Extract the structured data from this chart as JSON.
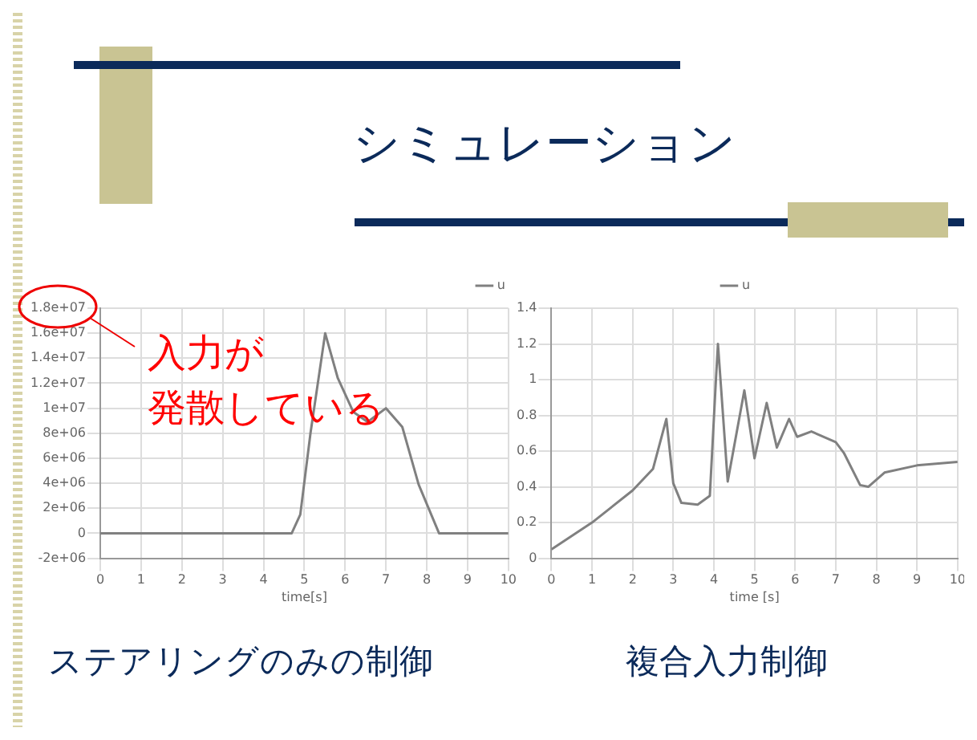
{
  "chart_data": [
    {
      "type": "line",
      "annotations": [
        "シミュレーション",
        "入力が",
        "発散している",
        "ステアリングのみの制御"
      ],
      "xlabel": "time[s]",
      "x": [
        0,
        1,
        2,
        3,
        4,
        4.69,
        4.9,
        5.15,
        5.51,
        5.82,
        6.2,
        6.55,
        7.0,
        7.4,
        7.8,
        8.3,
        9,
        10
      ],
      "series": [
        {
          "name": "u",
          "color": "#808080",
          "values": [
            0,
            0,
            0,
            0,
            0,
            0,
            1500000.0,
            8000000.0,
            16000000.0,
            12400000.0,
            9700000.0,
            8900000.0,
            10000000.0,
            8500000.0,
            3900000.0,
            0,
            0,
            0
          ]
        }
      ],
      "xlim": [
        0,
        10
      ],
      "xticks": [
        0,
        1,
        2,
        3,
        4,
        5,
        6,
        7,
        8,
        9,
        10
      ],
      "ylim": [
        -2000000.0,
        18000000.0
      ],
      "yticks": [
        {
          "value": -2000000.0,
          "label": "-2e+06"
        },
        0,
        {
          "value": 2000000.0,
          "label": "2e+06"
        },
        {
          "value": 4000000.0,
          "label": "4e+06"
        },
        {
          "value": 6000000.0,
          "label": "6e+06"
        },
        {
          "value": 8000000.0,
          "label": "8e+06"
        },
        {
          "value": 10000000.0,
          "label": "1e+07"
        },
        {
          "value": 12000000.0,
          "label": "1.2e+07"
        },
        {
          "value": 14000000.0,
          "label": "1.4e+07"
        },
        {
          "value": 16000000.0,
          "label": "1.6e+07"
        },
        {
          "value": 18000000.0,
          "label": "1.8e+07"
        }
      ],
      "grid": true,
      "legend": "top right",
      "marker": "none",
      "line_style": "solid"
    },
    {
      "type": "line",
      "annotations": [
        "複合入力制御"
      ],
      "xlabel": "time [s]",
      "x": [
        0,
        1,
        2,
        2.5,
        2.83,
        3.0,
        3.2,
        3.6,
        3.9,
        4.05,
        4.1,
        4.34,
        4.75,
        5.0,
        5.3,
        5.55,
        5.85,
        6.05,
        6.4,
        7.0,
        7.2,
        7.6,
        7.8,
        8.2,
        9,
        10
      ],
      "series": [
        {
          "name": "u",
          "color": "#808080",
          "values": [
            0.05,
            0.2,
            0.38,
            0.5,
            0.78,
            0.42,
            0.31,
            0.3,
            0.35,
            1.0,
            1.2,
            0.43,
            0.94,
            0.56,
            0.87,
            0.62,
            0.78,
            0.68,
            0.71,
            0.65,
            0.59,
            0.41,
            0.4,
            0.48,
            0.52,
            0.54
          ]
        }
      ],
      "xlim": [
        0,
        10
      ],
      "xticks": [
        0,
        1,
        2,
        3,
        4,
        5,
        6,
        7,
        8,
        9,
        10
      ],
      "ylim": [
        0,
        1.4
      ],
      "yticks": [
        0,
        0.2,
        0.4,
        0.6,
        0.8,
        1,
        1.2,
        1.4
      ],
      "grid": true,
      "legend": "top",
      "marker": "none",
      "line_style": "solid"
    }
  ]
}
